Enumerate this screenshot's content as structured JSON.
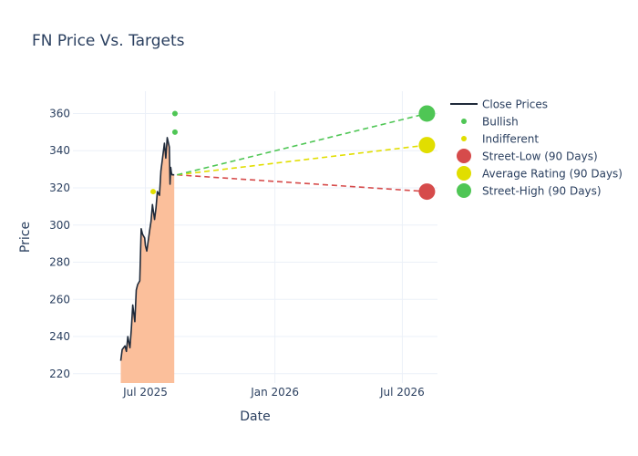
{
  "chart_data": {
    "type": "line",
    "title": "FN Price Vs. Targets",
    "xlabel": "Date",
    "ylabel": "Price",
    "x_ticks": [
      {
        "date": "2025-07-01",
        "label": "Jul 2025"
      },
      {
        "date": "2026-01-01",
        "label": "Jan 2026"
      },
      {
        "date": "2026-07-01",
        "label": "Jul 2026"
      }
    ],
    "y_ticks": [
      220,
      240,
      260,
      280,
      300,
      320,
      340,
      360
    ],
    "xlim": [
      "2025-03-20",
      "2026-08-20"
    ],
    "ylim": [
      215,
      372
    ],
    "grid": true,
    "legend_position": "right",
    "close_prices": {
      "name": "Close Prices",
      "color": "#1f2a3a",
      "fill_color": "#fbbf9b",
      "x": [
        "2025-05-27",
        "2025-05-29",
        "2025-06-02",
        "2025-06-04",
        "2025-06-06",
        "2025-06-09",
        "2025-06-11",
        "2025-06-13",
        "2025-06-16",
        "2025-06-18",
        "2025-06-20",
        "2025-06-23",
        "2025-06-25",
        "2025-06-27",
        "2025-06-30",
        "2025-07-01",
        "2025-07-03",
        "2025-07-07",
        "2025-07-09",
        "2025-07-11",
        "2025-07-14",
        "2025-07-16",
        "2025-07-18",
        "2025-07-21",
        "2025-07-23",
        "2025-07-25",
        "2025-07-28",
        "2025-07-30",
        "2025-08-01",
        "2025-08-04",
        "2025-08-05",
        "2025-08-06",
        "2025-08-07",
        "2025-08-08",
        "2025-08-11"
      ],
      "y": [
        227,
        233,
        235,
        232,
        240,
        234,
        244,
        257,
        248,
        265,
        268,
        270,
        298,
        295,
        293,
        289,
        286,
        297,
        302,
        311,
        303,
        309,
        318,
        316,
        329,
        335,
        344,
        336,
        347,
        342,
        322,
        331,
        328,
        327,
        327
      ]
    },
    "bullish": {
      "name": "Bullish",
      "color": "#4fc655",
      "points": [
        {
          "x": "2025-08-12",
          "y": 360
        },
        {
          "x": "2025-08-12",
          "y": 350
        }
      ]
    },
    "indifferent": {
      "name": "Indifferent",
      "color": "#e1de00",
      "points": [
        {
          "x": "2025-07-12",
          "y": 318
        }
      ]
    },
    "targets": {
      "start": {
        "x": "2025-08-15",
        "y": 327
      },
      "end_x": "2026-08-05",
      "street_low": {
        "name": "Street-Low (90 Days)",
        "y": 318,
        "color": "#d64b4b"
      },
      "average": {
        "name": "Average Rating (90 Days)",
        "y": 343,
        "color": "#e1de00"
      },
      "street_high": {
        "name": "Street-High (90 Days)",
        "y": 360,
        "color": "#4fc655"
      }
    }
  }
}
